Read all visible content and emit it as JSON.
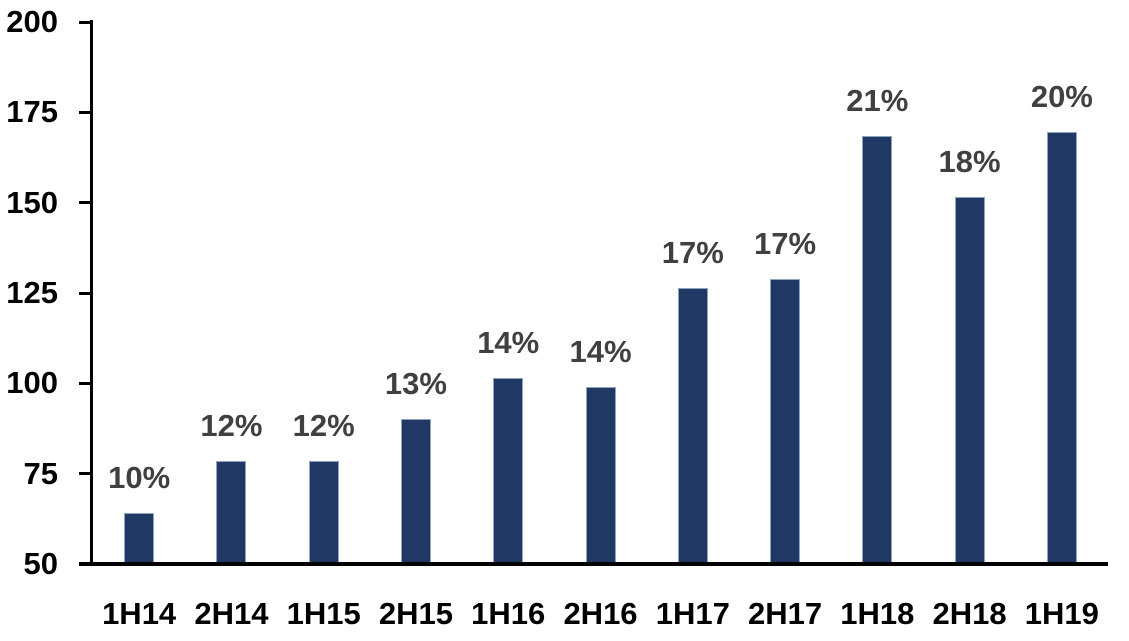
{
  "colors": {
    "background": "#FFFFFF",
    "bar_fill": "#1F3864",
    "bar_border": "#92A3BE",
    "data_label": "#404040",
    "axis_line": "#000000",
    "axis_text": "#000000"
  },
  "chart_data": {
    "type": "bar",
    "title": "",
    "xlabel": "",
    "ylabel": "",
    "categories": [
      "1H14",
      "2H14",
      "1H15",
      "2H15",
      "1H16",
      "2H16",
      "1H17",
      "2H17",
      "1H18",
      "2H18",
      "1H19"
    ],
    "values": [
      64,
      78.5,
      78.5,
      90,
      101.5,
      99,
      126.5,
      129,
      168.5,
      151.5,
      169.5
    ],
    "bar_labels": [
      "10%",
      "12%",
      "12%",
      "13%",
      "14%",
      "14%",
      "17%",
      "17%",
      "21%",
      "18%",
      "20%"
    ],
    "ylim": [
      50,
      200
    ],
    "ytick_step": 25,
    "yticks": [
      50,
      75,
      100,
      125,
      150,
      175,
      200
    ],
    "grid": false,
    "legend": false,
    "data_labels_position": "outside-end"
  }
}
